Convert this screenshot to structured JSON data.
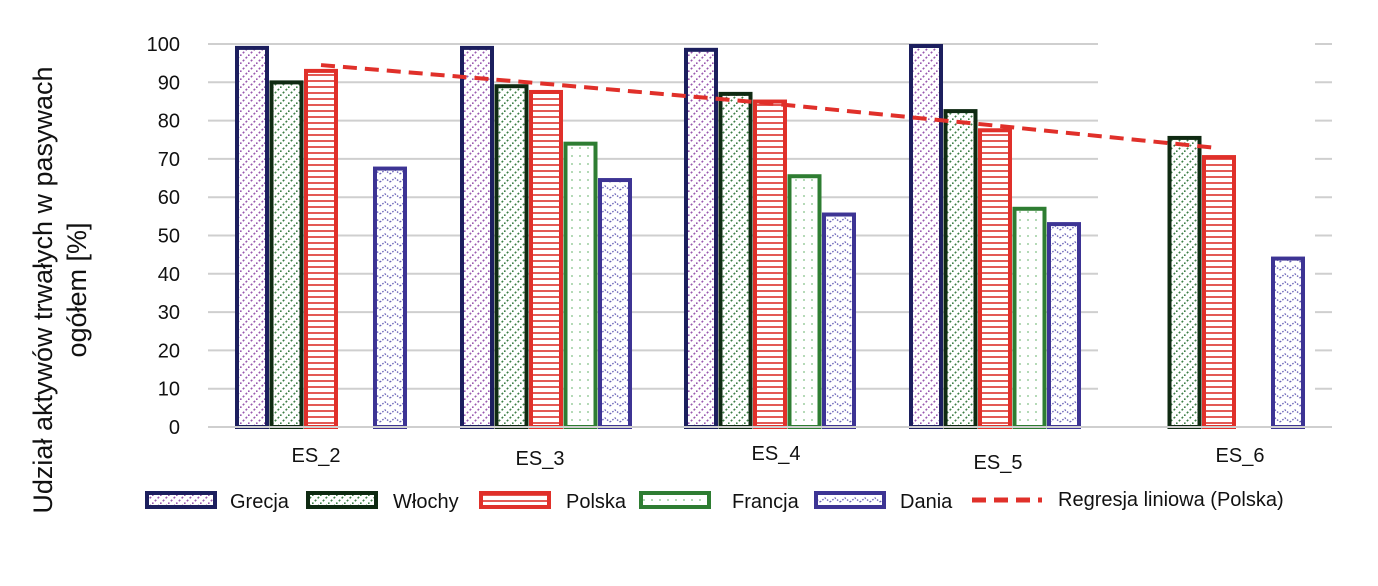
{
  "chart_data": {
    "type": "bar",
    "categories": [
      "ES_2",
      "ES_3",
      "ES_4",
      "ES_5",
      "ES_6"
    ],
    "series": [
      {
        "name": "Grecja",
        "values": [
          99.5,
          99.5,
          99,
          100,
          null
        ],
        "color": "#1c1f5e",
        "pattern": "dots-purple"
      },
      {
        "name": "Włochy",
        "values": [
          90.5,
          89.5,
          87.5,
          83,
          76
        ],
        "color": "#0f2a12",
        "pattern": "dots-green"
      },
      {
        "name": "Polska",
        "values": [
          93.5,
          88,
          85.5,
          78,
          71
        ],
        "color": "#e0302a",
        "pattern": "stripes-red"
      },
      {
        "name": "Francja",
        "values": [
          null,
          74.5,
          66,
          57.5,
          null
        ],
        "color": "#2e7d32",
        "pattern": "dots-lightgreen"
      },
      {
        "name": "Dania",
        "values": [
          68,
          65,
          56,
          53.5,
          44.5
        ],
        "color": "#3d3494",
        "pattern": "dots-blue"
      }
    ],
    "trendline": {
      "name": "Regresja liniowa (Polska)",
      "color": "#e0302a",
      "style": "dashed",
      "values": [
        94.5,
        89.6,
        84.5,
        78.7,
        72.8
      ]
    },
    "ylabel_lines": [
      "Udział aktywów trwałych w pasywach",
      "ogółem [%]"
    ],
    "yticks": [
      "0",
      "10",
      "20",
      "30",
      "40",
      "50",
      "60",
      "70",
      "80",
      "90",
      "100"
    ],
    "ylim": [
      0,
      100
    ],
    "grid": true,
    "legend_position": "bottom"
  }
}
